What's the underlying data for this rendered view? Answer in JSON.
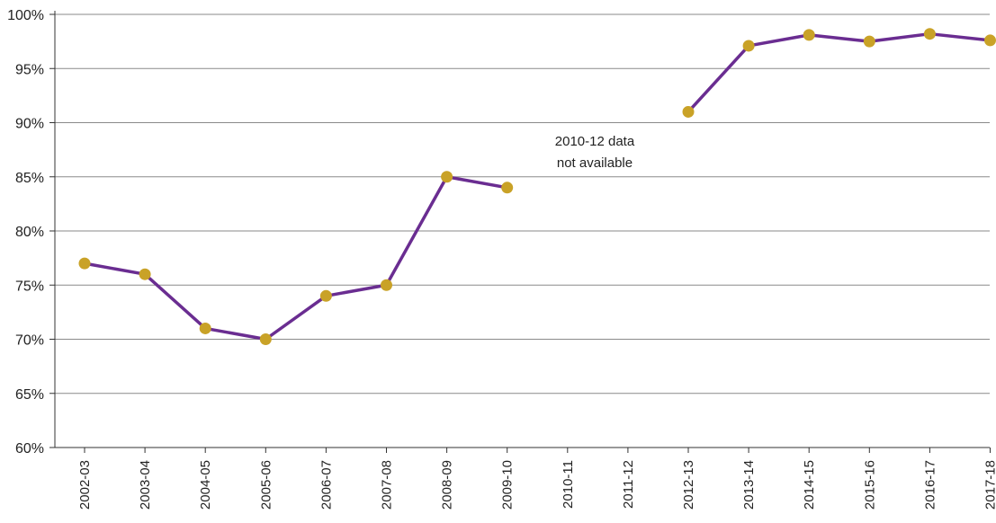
{
  "chart_data": {
    "type": "line",
    "title": "",
    "xlabel": "",
    "ylabel": "",
    "categories": [
      "2002-03",
      "2003-04",
      "2004-05",
      "2005-06",
      "2006-07",
      "2007-08",
      "2008-09",
      "2009-10",
      "2010-11",
      "2011-12",
      "2012-13",
      "2013-14",
      "2014-15",
      "2015-16",
      "2016-17",
      "2017-18"
    ],
    "y_ticks": [
      "60%",
      "65%",
      "70%",
      "75%",
      "80%",
      "85%",
      "90%",
      "95%",
      "100%"
    ],
    "ylim": [
      60,
      100
    ],
    "y_unit": "%",
    "grid": true,
    "series": [
      {
        "values": [
          77,
          76,
          71,
          70,
          74,
          75,
          85,
          84,
          null,
          null,
          91,
          97.1,
          98.1,
          97.5,
          98.2,
          97.6
        ]
      }
    ],
    "annotations": [
      {
        "line1": "2010-12 data",
        "line2": "not available"
      }
    ],
    "colors": {
      "line": "#6a2d91",
      "marker": "#c9a227",
      "grid": "#8a8a8a",
      "axis": "#333333"
    }
  }
}
